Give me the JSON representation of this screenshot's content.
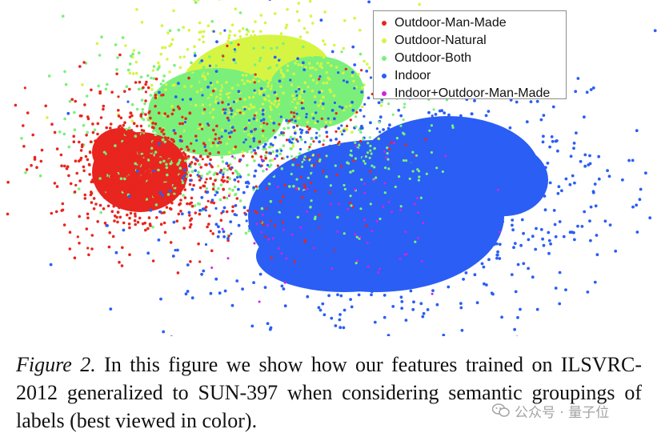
{
  "figure": {
    "caption_label": "Figure 2.",
    "caption_text": " In this figure we show how our features trained on ILSVRC-2012 generalized to SUN-397 when considering semantic groupings of labels (best viewed in color)."
  },
  "legend": {
    "items": [
      {
        "label": "Outdoor-Man-Made",
        "color": "#e8251e"
      },
      {
        "label": "Outdoor-Natural",
        "color": "#d6f542"
      },
      {
        "label": "Outdoor-Both",
        "color": "#7af07a"
      },
      {
        "label": "Indoor",
        "color": "#2a5ef5"
      },
      {
        "label": "Indoor+Outdoor-Man-Made",
        "color": "#d024e0"
      }
    ]
  },
  "watermark": {
    "text": "公众号 · 量子位",
    "icon": "wechat-icon"
  },
  "chart_data": {
    "type": "scatter",
    "title": "",
    "xlabel": "",
    "ylabel": "",
    "legend_position": "top-right",
    "grid": false,
    "axes_visible": false,
    "series": [
      {
        "name": "Outdoor-Man-Made",
        "color": "#e8251e",
        "region": "left lobe, dense"
      },
      {
        "name": "Outdoor-Natural",
        "color": "#d6f542",
        "region": "upper center"
      },
      {
        "name": "Outdoor-Both",
        "color": "#7af07a",
        "region": "upper-left center"
      },
      {
        "name": "Indoor",
        "color": "#2a5ef5",
        "region": "right and lower, largest mass"
      },
      {
        "name": "Indoor+Outdoor-Man-Made",
        "color": "#d024e0",
        "region": "sparse, center"
      }
    ]
  }
}
